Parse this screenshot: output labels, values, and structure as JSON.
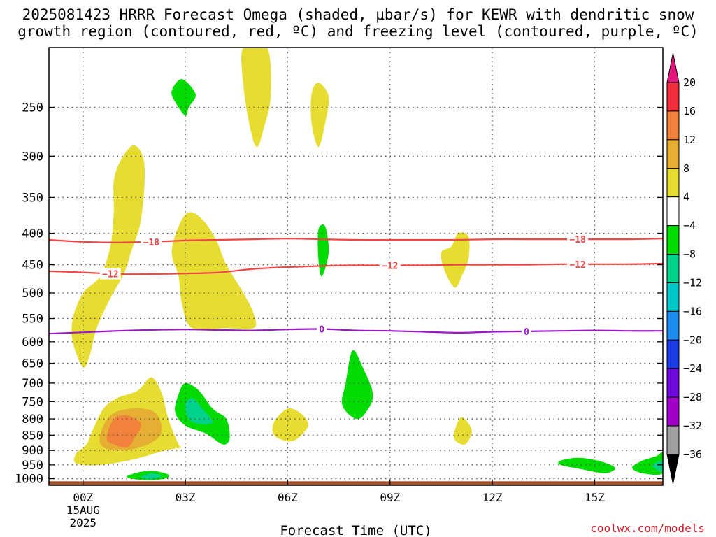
{
  "title": {
    "line1": "2025081423 HRRR Forecast Omega (shaded, μbar/s) for KEWR with dendritic snow",
    "line2": "growth region (contoured, red, ºC) and freezing level (contoured, purple, ºC)"
  },
  "credit": "coolwx.com/models",
  "chart_data": {
    "type": "time-height cross section (filled contour)",
    "xlabel": "Forecast Time (UTC)",
    "x_ticks": [
      {
        "hour": 0,
        "label": "00Z",
        "sub": [
          "15AUG",
          "2025"
        ]
      },
      {
        "hour": 3,
        "label": "03Z"
      },
      {
        "hour": 6,
        "label": "06Z"
      },
      {
        "hour": 9,
        "label": "09Z"
      },
      {
        "hour": 12,
        "label": "12Z"
      },
      {
        "hour": 15,
        "label": "15Z"
      }
    ],
    "xlim": [
      -1,
      17
    ],
    "ylabel": "",
    "y_axis": "pressure (hPa), log scale, inverted",
    "ylim": [
      1025,
      200
    ],
    "y_ticks": [
      250,
      300,
      350,
      400,
      450,
      500,
      550,
      600,
      650,
      700,
      750,
      800,
      850,
      900,
      950,
      1000
    ],
    "grid": "dotted",
    "colorbar": {
      "labels": [
        20,
        16,
        12,
        8,
        4,
        -4,
        -8,
        -12,
        -16,
        -20,
        -24,
        -28,
        -32,
        -36
      ],
      "bins": [
        {
          "min": 16,
          "max": 20,
          "color": "#f0303c"
        },
        {
          "min": 12,
          "max": 16,
          "color": "#f0823c"
        },
        {
          "min": 8,
          "max": 12,
          "color": "#e6ae32"
        },
        {
          "min": 4,
          "max": 8,
          "color": "#e6dc32"
        },
        {
          "min": -4,
          "max": 4,
          "color": "#ffffff"
        },
        {
          "min": -8,
          "max": -4,
          "color": "#00dc00"
        },
        {
          "min": -12,
          "max": -8,
          "color": "#00d28c"
        },
        {
          "min": -16,
          "max": -12,
          "color": "#00c8c8"
        },
        {
          "min": -20,
          "max": -16,
          "color": "#1e8cf0"
        },
        {
          "min": -24,
          "max": -20,
          "color": "#1e3ce6"
        },
        {
          "min": -28,
          "max": -24,
          "color": "#6e0adc"
        },
        {
          "min": -32,
          "max": -28,
          "color": "#a000c8"
        },
        {
          "min": -36,
          "max": -32,
          "color": "#a0a0a0"
        }
      ],
      "over_color": "#e6147d",
      "under_color": "#000000"
    },
    "contours": [
      {
        "level": -18,
        "color": "#f04646",
        "points": [
          [
            -1,
            410
          ],
          [
            0,
            413
          ],
          [
            1,
            414
          ],
          [
            2,
            413
          ],
          [
            3,
            411
          ],
          [
            4,
            410
          ],
          [
            5,
            409
          ],
          [
            6,
            408
          ],
          [
            7,
            409
          ],
          [
            8,
            410
          ],
          [
            9,
            410
          ],
          [
            10,
            410
          ],
          [
            11,
            410
          ],
          [
            12,
            409
          ],
          [
            13,
            409
          ],
          [
            14,
            409
          ],
          [
            15,
            409
          ],
          [
            16,
            409
          ],
          [
            17,
            408
          ]
        ],
        "labels_at": [
          2,
          14.5
        ]
      },
      {
        "level": -12,
        "color": "#f04646",
        "points": [
          [
            -1,
            461
          ],
          [
            0,
            463
          ],
          [
            1,
            466
          ],
          [
            2,
            466
          ],
          [
            3,
            465
          ],
          [
            4,
            463
          ],
          [
            5,
            457
          ],
          [
            6,
            454
          ],
          [
            7,
            452
          ],
          [
            8,
            451
          ],
          [
            9,
            451
          ],
          [
            10,
            451
          ],
          [
            11,
            450
          ],
          [
            12,
            450
          ],
          [
            13,
            450
          ],
          [
            14,
            449
          ],
          [
            15,
            449
          ],
          [
            16,
            449
          ],
          [
            17,
            448
          ]
        ],
        "labels_at": [
          0.8,
          9,
          14.5
        ]
      },
      {
        "level": 0,
        "color": "#9b19c8",
        "points": [
          [
            -1,
            582
          ],
          [
            0,
            579
          ],
          [
            1,
            576
          ],
          [
            2,
            574
          ],
          [
            3,
            573
          ],
          [
            4,
            574
          ],
          [
            5,
            575
          ],
          [
            6,
            573
          ],
          [
            7,
            572
          ],
          [
            8,
            575
          ],
          [
            9,
            576
          ],
          [
            10,
            578
          ],
          [
            11,
            580
          ],
          [
            12,
            578
          ],
          [
            13,
            577
          ],
          [
            14,
            576
          ],
          [
            15,
            575
          ],
          [
            16,
            576
          ],
          [
            17,
            576
          ]
        ],
        "labels_at": [
          7,
          13
        ]
      }
    ],
    "omega_regions": [
      {
        "value_range": [
          4,
          8
        ],
        "points": [
          [
            4.7,
            200
          ],
          [
            5.4,
            200
          ],
          [
            5.5,
            240
          ],
          [
            5.3,
            270
          ],
          [
            5.1,
            290
          ],
          [
            4.9,
            270
          ],
          [
            4.7,
            230
          ]
        ]
      },
      {
        "value_range": [
          4,
          8
        ],
        "points": [
          [
            6.7,
            238
          ],
          [
            6.9,
            228
          ],
          [
            7.2,
            240
          ],
          [
            7.1,
            265
          ],
          [
            6.9,
            290
          ],
          [
            6.7,
            265
          ]
        ]
      },
      {
        "value_range": [
          4,
          8
        ],
        "points": [
          [
            0.9,
            330
          ],
          [
            1.1,
            305
          ],
          [
            1.5,
            288
          ],
          [
            1.8,
            310
          ],
          [
            1.7,
            380
          ],
          [
            1.4,
            430
          ],
          [
            1.2,
            465
          ],
          [
            0.8,
            510
          ],
          [
            0.4,
            570
          ],
          [
            0.2,
            630
          ],
          [
            0,
            660
          ],
          [
            -0.3,
            600
          ],
          [
            -0.3,
            550
          ],
          [
            0,
            500
          ],
          [
            0.5,
            470
          ],
          [
            0.8,
            420
          ],
          [
            0.9,
            370
          ]
        ]
      },
      {
        "value_range": [
          4,
          8
        ],
        "points": [
          [
            2.8,
            390
          ],
          [
            3.1,
            370
          ],
          [
            3.5,
            380
          ],
          [
            3.9,
            410
          ],
          [
            4.2,
            450
          ],
          [
            4.7,
            500
          ],
          [
            5.0,
            540
          ],
          [
            5.0,
            570
          ],
          [
            4.2,
            570
          ],
          [
            3.2,
            570
          ],
          [
            2.9,
            520
          ],
          [
            2.8,
            470
          ],
          [
            2.6,
            430
          ]
        ]
      },
      {
        "value_range": [
          4,
          8
        ],
        "points": [
          [
            10.8,
            420
          ],
          [
            11.0,
            400
          ],
          [
            11.3,
            405
          ],
          [
            11.3,
            440
          ],
          [
            11.1,
            470
          ],
          [
            10.9,
            490
          ],
          [
            10.6,
            460
          ],
          [
            10.5,
            430
          ]
        ]
      },
      {
        "value_range": [
          4,
          8
        ],
        "points": [
          [
            5.6,
            810
          ],
          [
            6.0,
            770
          ],
          [
            6.4,
            785
          ],
          [
            6.6,
            820
          ],
          [
            6.3,
            860
          ],
          [
            6.0,
            870
          ],
          [
            5.6,
            850
          ]
        ]
      },
      {
        "value_range": [
          4,
          8
        ],
        "points": [
          [
            10.9,
            835
          ],
          [
            11.1,
            795
          ],
          [
            11.4,
            835
          ],
          [
            11.2,
            880
          ],
          [
            10.9,
            865
          ]
        ]
      },
      {
        "value_range": [
          4,
          8
        ],
        "points": [
          [
            0.6,
            770
          ],
          [
            1.0,
            740
          ],
          [
            1.6,
            720
          ],
          [
            2.0,
            685
          ],
          [
            2.3,
            725
          ],
          [
            2.5,
            800
          ],
          [
            2.8,
            880
          ],
          [
            2.9,
            890
          ],
          [
            2.4,
            900
          ],
          [
            1.5,
            930
          ],
          [
            0.5,
            950
          ],
          [
            -0.2,
            945
          ],
          [
            -0.2,
            910
          ],
          [
            0.1,
            880
          ],
          [
            0.3,
            830
          ]
        ]
      },
      {
        "value_range": [
          8,
          12
        ],
        "points": [
          [
            0.5,
            850
          ],
          [
            0.8,
            790
          ],
          [
            1.4,
            770
          ],
          [
            2.1,
            780
          ],
          [
            2.3,
            840
          ],
          [
            1.9,
            880
          ],
          [
            1.2,
            900
          ],
          [
            0.6,
            890
          ]
        ]
      },
      {
        "value_range": [
          12,
          16
        ],
        "points": [
          [
            0.7,
            860
          ],
          [
            0.9,
            800
          ],
          [
            1.3,
            790
          ],
          [
            1.7,
            815
          ],
          [
            1.5,
            860
          ],
          [
            1.3,
            890
          ],
          [
            0.9,
            880
          ]
        ]
      },
      {
        "value_range": [
          -8,
          -4
        ],
        "points": [
          [
            2.6,
            235
          ],
          [
            2.9,
            225
          ],
          [
            3.3,
            238
          ],
          [
            3.1,
            250
          ],
          [
            3.0,
            258
          ],
          [
            2.7,
            245
          ]
        ]
      },
      {
        "value_range": [
          -8,
          -4
        ],
        "points": [
          [
            6.9,
            395
          ],
          [
            7.1,
            390
          ],
          [
            7.2,
            430
          ],
          [
            7.0,
            470
          ],
          [
            6.9,
            440
          ]
        ]
      },
      {
        "value_range": [
          -8,
          -4
        ],
        "points": [
          [
            7.7,
            700
          ],
          [
            7.9,
            620
          ],
          [
            8.2,
            660
          ],
          [
            8.5,
            730
          ],
          [
            8.3,
            780
          ],
          [
            8.0,
            800
          ],
          [
            7.6,
            760
          ]
        ]
      },
      {
        "value_range": [
          -8,
          -4
        ],
        "points": [
          [
            2.8,
            730
          ],
          [
            3.0,
            700
          ],
          [
            3.4,
            720
          ],
          [
            3.8,
            770
          ],
          [
            4.2,
            800
          ],
          [
            4.3,
            860
          ],
          [
            4.1,
            880
          ],
          [
            3.6,
            845
          ],
          [
            3.0,
            820
          ],
          [
            2.7,
            780
          ]
        ]
      },
      {
        "value_range": [
          -8,
          -4
        ],
        "points": [
          [
            1.3,
            990
          ],
          [
            1.7,
            975
          ],
          [
            2.1,
            972
          ],
          [
            2.5,
            985
          ],
          [
            2.4,
            1000
          ],
          [
            1.9,
            1005
          ],
          [
            1.4,
            1000
          ]
        ]
      },
      {
        "value_range": [
          -8,
          -4
        ],
        "points": [
          [
            14.0,
            935
          ],
          [
            14.5,
            925
          ],
          [
            15.1,
            935
          ],
          [
            15.6,
            960
          ],
          [
            15.3,
            980
          ],
          [
            14.6,
            965
          ],
          [
            14.0,
            950
          ]
        ]
      },
      {
        "value_range": [
          -8,
          -4
        ],
        "points": [
          [
            16.1,
            960
          ],
          [
            16.4,
            935
          ],
          [
            16.8,
            920
          ],
          [
            17,
            910
          ],
          [
            17,
            980
          ],
          [
            16.4,
            980
          ]
        ]
      },
      {
        "value_range": [
          -12,
          -8
        ],
        "points": [
          [
            3.0,
            760
          ],
          [
            3.2,
            740
          ],
          [
            3.5,
            770
          ],
          [
            3.8,
            810
          ],
          [
            3.4,
            815
          ],
          [
            3.1,
            800
          ]
        ]
      },
      {
        "value_range": [
          -12,
          -8
        ],
        "points": [
          [
            1.7,
            995
          ],
          [
            2.0,
            980
          ],
          [
            2.3,
            990
          ],
          [
            2.0,
            1002
          ]
        ]
      },
      {
        "value_range": [
          -12,
          -8
        ],
        "points": [
          [
            16.7,
            950
          ],
          [
            17,
            935
          ],
          [
            17,
            975
          ],
          [
            16.8,
            965
          ]
        ]
      }
    ],
    "terrain": {
      "color": "#a0522d",
      "surface_hpa": 1010
    }
  },
  "legend_arrows": {
    "top": "#e6147d",
    "bottom": "#000000"
  }
}
